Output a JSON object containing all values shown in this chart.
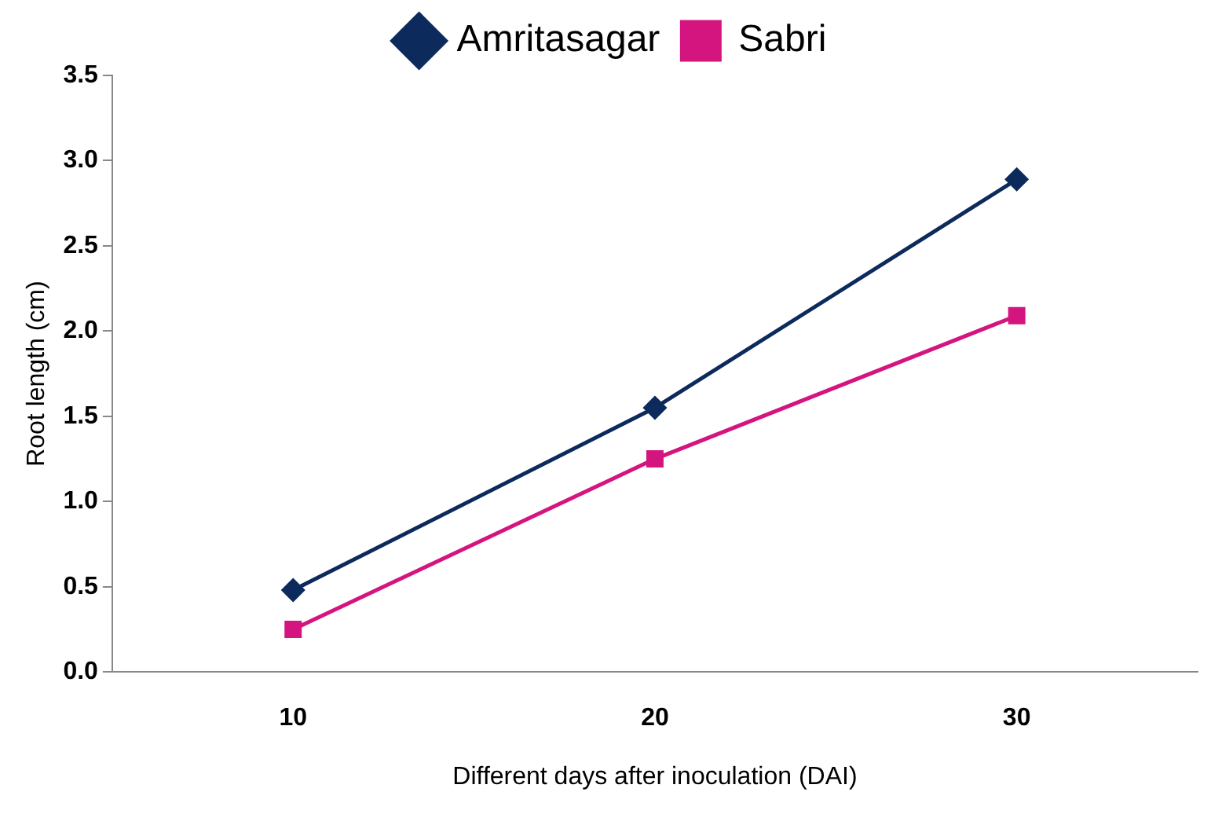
{
  "chart_data": {
    "type": "line",
    "xlabel": "Different days after inoculation (DAI)",
    "ylabel": "Root length (cm)",
    "categories": [
      "10",
      "20",
      "30"
    ],
    "series": [
      {
        "name": "Amritasagar",
        "color": "#0d2a5c",
        "marker": "diamond",
        "values": [
          0.48,
          1.55,
          2.89
        ]
      },
      {
        "name": "Sabri",
        "color": "#d4157f",
        "marker": "square",
        "values": [
          0.25,
          1.25,
          2.09
        ]
      }
    ],
    "ylim": [
      0,
      3.5
    ],
    "yticks": [
      {
        "value": 0,
        "label": "0.0"
      },
      {
        "value": 0.5,
        "label": "0.5"
      },
      {
        "value": 1,
        "label": "1.0"
      },
      {
        "value": 1.5,
        "label": "1.5"
      },
      {
        "value": 2,
        "label": "2.0"
      },
      {
        "value": 2.5,
        "label": "2.5"
      },
      {
        "value": 3,
        "label": "3.0"
      },
      {
        "value": 3.5,
        "label": "3.5"
      }
    ],
    "grid": false,
    "legend": "top",
    "line_style": "solid"
  }
}
